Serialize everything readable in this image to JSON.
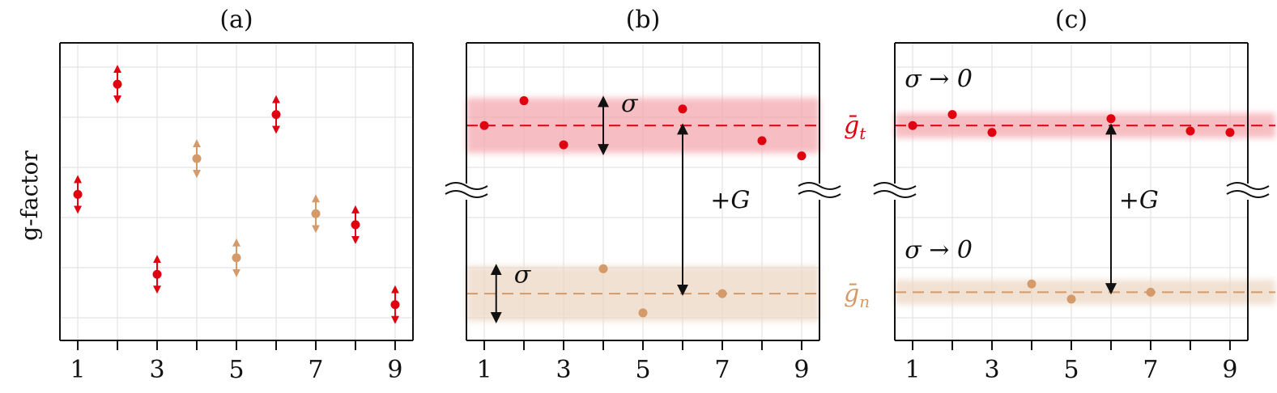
{
  "colors": {
    "trapped": "#e0000f",
    "neutral": "#d49a6a",
    "trapped_band": "#f4a7ae",
    "neutral_band": "#ecd7c3",
    "grid": "#e3e3e3",
    "axis": "#111111"
  },
  "chart_data": [
    {
      "type": "scatter",
      "title": "(a)",
      "ylabel": "g-factor",
      "xlim": [
        0.55,
        9.45
      ],
      "ylim": [
        -0.2,
        10.6
      ],
      "x_ticks": [
        1,
        2,
        3,
        4,
        5,
        6,
        7,
        8,
        9
      ],
      "x_tick_labels": [
        "1",
        "",
        "3",
        "",
        "5",
        "",
        "7",
        "",
        "9"
      ],
      "grid": true,
      "error_bars": "vertical double-headed arrows",
      "points": [
        {
          "x": 1,
          "y": 5.1,
          "series": "t"
        },
        {
          "x": 2,
          "y": 9.1,
          "series": "t"
        },
        {
          "x": 3,
          "y": 2.2,
          "series": "t"
        },
        {
          "x": 4,
          "y": 6.4,
          "series": "n"
        },
        {
          "x": 5,
          "y": 2.8,
          "series": "n"
        },
        {
          "x": 6,
          "y": 8.0,
          "series": "t"
        },
        {
          "x": 7,
          "y": 4.4,
          "series": "n"
        },
        {
          "x": 8,
          "y": 4.0,
          "series": "t"
        },
        {
          "x": 9,
          "y": 1.1,
          "series": "t"
        }
      ]
    },
    {
      "type": "scatter",
      "title": "(b)",
      "xlim": [
        0.55,
        9.45
      ],
      "ylim": [
        -0.2,
        10.6
      ],
      "x_ticks": [
        1,
        2,
        3,
        4,
        5,
        6,
        7,
        8,
        9
      ],
      "x_tick_labels": [
        "1",
        "",
        "3",
        "",
        "5",
        "",
        "7",
        "",
        "9"
      ],
      "grid": true,
      "axis_break": true,
      "mean_lines": [
        {
          "series": "t",
          "y": 7.6,
          "label": "ḡ",
          "sub": "t"
        },
        {
          "series": "n",
          "y": 1.5,
          "label": "ḡ",
          "sub": "n"
        }
      ],
      "bands": [
        {
          "series": "t",
          "y": 7.6,
          "half_width": 1.0
        },
        {
          "series": "n",
          "y": 1.5,
          "half_width": 1.0
        }
      ],
      "annotations": [
        {
          "text": "σ",
          "x": 4.45,
          "y": 8.1
        },
        {
          "text": "σ",
          "x": 1.75,
          "y": 1.9
        },
        {
          "text": "+G",
          "x": 6.7,
          "y": 4.6
        }
      ],
      "arrows": [
        {
          "x": 4,
          "y1": 6.6,
          "y2": 8.6
        },
        {
          "x": 1.3,
          "y1": 0.5,
          "y2": 2.5
        },
        {
          "x": 6,
          "y1": 1.5,
          "y2": 7.6
        }
      ],
      "points": [
        {
          "x": 1,
          "y": 7.6,
          "series": "t"
        },
        {
          "x": 2,
          "y": 8.5,
          "series": "t"
        },
        {
          "x": 3,
          "y": 6.9,
          "series": "t"
        },
        {
          "x": 6,
          "y": 8.2,
          "series": "t"
        },
        {
          "x": 8,
          "y": 7.05,
          "series": "t"
        },
        {
          "x": 9,
          "y": 6.5,
          "series": "t"
        },
        {
          "x": 4,
          "y": 2.4,
          "series": "n"
        },
        {
          "x": 5,
          "y": 0.8,
          "series": "n"
        },
        {
          "x": 7,
          "y": 1.5,
          "series": "n"
        }
      ]
    },
    {
      "type": "scatter",
      "title": "(c)",
      "xlim": [
        0.55,
        9.45
      ],
      "ylim": [
        -0.2,
        10.6
      ],
      "x_ticks": [
        1,
        2,
        3,
        4,
        5,
        6,
        7,
        8,
        9
      ],
      "x_tick_labels": [
        "1",
        "",
        "3",
        "",
        "5",
        "",
        "7",
        "",
        "9"
      ],
      "grid": true,
      "axis_break": true,
      "mean_lines": [
        {
          "series": "t",
          "y": 7.6
        },
        {
          "series": "n",
          "y": 1.55
        }
      ],
      "bands": [
        {
          "series": "t",
          "y": 7.6,
          "half_width": 0.45
        },
        {
          "series": "n",
          "y": 1.55,
          "half_width": 0.45
        }
      ],
      "annotations": [
        {
          "text": "σ → 0",
          "x": 0.8,
          "y": 9.0
        },
        {
          "text": "σ → 0",
          "x": 0.8,
          "y": 2.8
        },
        {
          "text": "+G",
          "x": 6.2,
          "y": 4.6
        }
      ],
      "arrows": [
        {
          "x": 6,
          "y1": 1.55,
          "y2": 7.6
        }
      ],
      "points": [
        {
          "x": 1,
          "y": 7.6,
          "series": "t"
        },
        {
          "x": 2,
          "y": 8.0,
          "series": "t"
        },
        {
          "x": 3,
          "y": 7.35,
          "series": "t"
        },
        {
          "x": 6,
          "y": 7.85,
          "series": "t"
        },
        {
          "x": 8,
          "y": 7.4,
          "series": "t"
        },
        {
          "x": 9,
          "y": 7.35,
          "series": "t"
        },
        {
          "x": 4,
          "y": 1.85,
          "series": "n"
        },
        {
          "x": 5,
          "y": 1.3,
          "series": "n"
        },
        {
          "x": 7,
          "y": 1.55,
          "series": "n"
        }
      ]
    }
  ]
}
